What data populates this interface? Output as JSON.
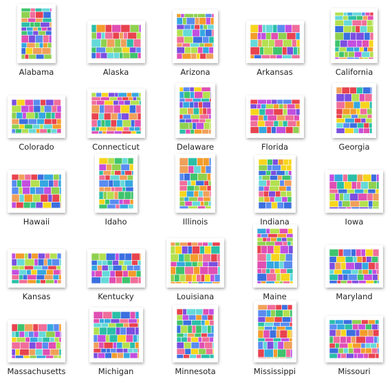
{
  "states": [
    "Alabama",
    "Alaska",
    "Arizona",
    "Arkansas",
    "California",
    "Colorado",
    "Connecticut",
    "Delaware",
    "Florida",
    "Georgia",
    "Hawaii",
    "Idaho",
    "Illinois",
    "Indiana",
    "Iowa",
    "Kansas",
    "Kentucky",
    "Louisiana",
    "Maine",
    "Maryland",
    "Massachusetts",
    "Michigan",
    "Minnesota",
    "Mississippi",
    "Missouri"
  ]
}
